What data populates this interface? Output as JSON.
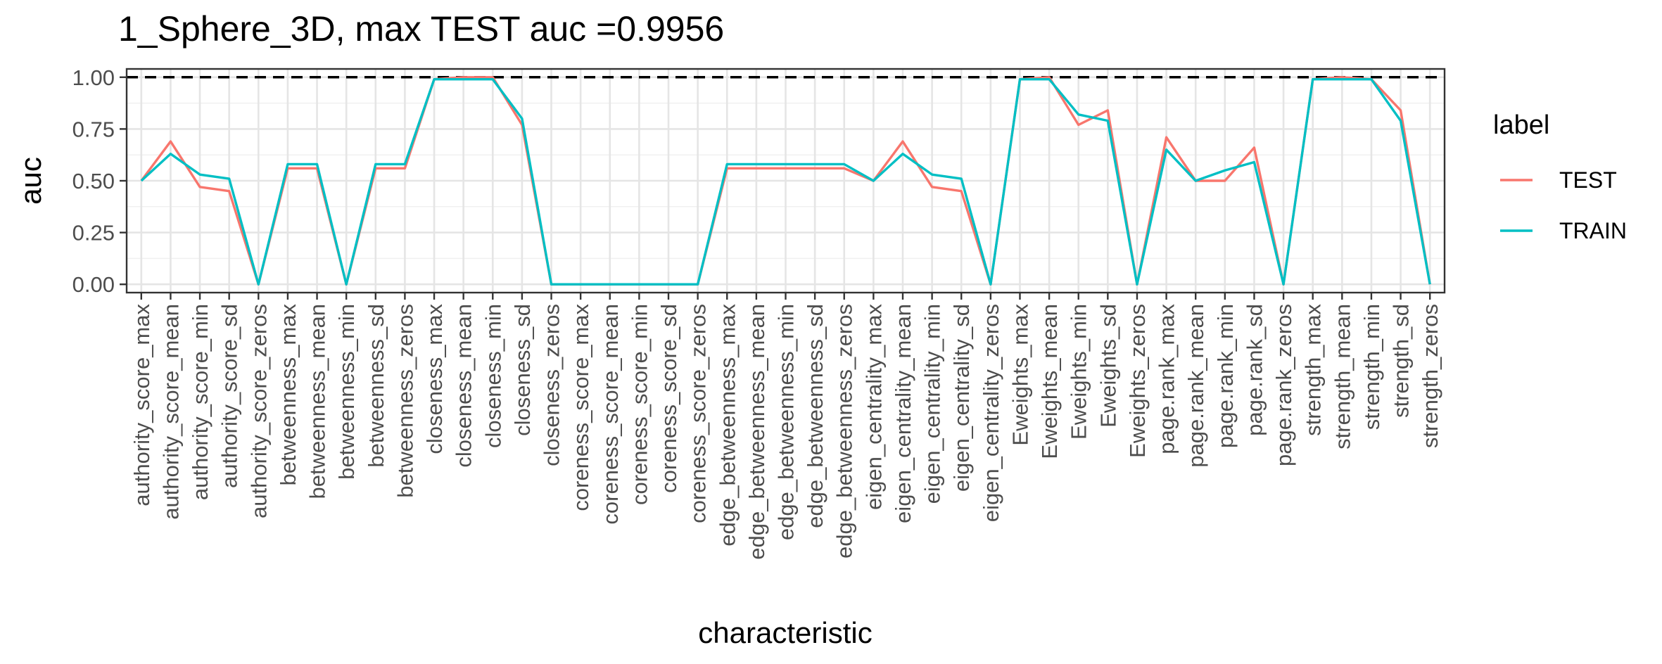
{
  "chart_data": {
    "type": "line",
    "title": "1_Sphere_3D, max TEST auc =0.9956",
    "xlabel": "characteristic",
    "ylabel": "auc",
    "ylim": [
      -0.04,
      1.04
    ],
    "yticks": [
      0,
      0.25,
      0.5,
      0.75,
      1
    ],
    "ytick_labels": [
      "0.00",
      "0.25",
      "0.50",
      "0.75",
      "1.00"
    ],
    "reference_line": {
      "y": 1.0,
      "style": "dashed"
    },
    "grid": true,
    "legend": {
      "title": "label",
      "position": "right"
    },
    "categories": [
      "authority_score_max",
      "authority_score_mean",
      "authority_score_min",
      "authority_score_sd",
      "authority_score_zeros",
      "betweenness_max",
      "betweenness_mean",
      "betweenness_min",
      "betweenness_sd",
      "betweenness_zeros",
      "closeness_max",
      "closeness_mean",
      "closeness_min",
      "closeness_sd",
      "closeness_zeros",
      "coreness_score_max",
      "coreness_score_mean",
      "coreness_score_min",
      "coreness_score_sd",
      "coreness_score_zeros",
      "edge_betweenness_max",
      "edge_betweenness_mean",
      "edge_betweenness_min",
      "edge_betweenness_sd",
      "edge_betweenness_zeros",
      "eigen_centrality_max",
      "eigen_centrality_mean",
      "eigen_centrality_min",
      "eigen_centrality_sd",
      "eigen_centrality_zeros",
      "Eweights_max",
      "Eweights_mean",
      "Eweights_min",
      "Eweights_sd",
      "Eweights_zeros",
      "page.rank_max",
      "page.rank_mean",
      "page.rank_min",
      "page.rank_sd",
      "page.rank_zeros",
      "strength_max",
      "strength_mean",
      "strength_min",
      "strength_sd",
      "strength_zeros"
    ],
    "series": [
      {
        "name": "TEST",
        "color": "#F8766D",
        "values": [
          0.5,
          0.69,
          0.47,
          0.45,
          0.0,
          0.56,
          0.56,
          0.0,
          0.56,
          0.56,
          0.99,
          1.0,
          1.0,
          0.77,
          0.0,
          0.0,
          0.0,
          0.0,
          0.0,
          0.0,
          0.56,
          0.56,
          0.56,
          0.56,
          0.56,
          0.5,
          0.69,
          0.47,
          0.45,
          0.0,
          0.99,
          1.0,
          0.77,
          0.84,
          0.0,
          0.71,
          0.5,
          0.5,
          0.66,
          0.0,
          0.99,
          1.0,
          0.99,
          0.84,
          0.0
        ]
      },
      {
        "name": "TRAIN",
        "color": "#00BFC4",
        "values": [
          0.5,
          0.63,
          0.53,
          0.51,
          0.0,
          0.58,
          0.58,
          0.0,
          0.58,
          0.58,
          0.99,
          0.99,
          0.99,
          0.8,
          0.0,
          0.0,
          0.0,
          0.0,
          0.0,
          0.0,
          0.58,
          0.58,
          0.58,
          0.58,
          0.58,
          0.5,
          0.63,
          0.53,
          0.51,
          0.0,
          0.99,
          0.99,
          0.82,
          0.79,
          0.0,
          0.65,
          0.5,
          0.55,
          0.59,
          0.0,
          0.99,
          0.99,
          0.99,
          0.79,
          0.0
        ]
      }
    ]
  }
}
